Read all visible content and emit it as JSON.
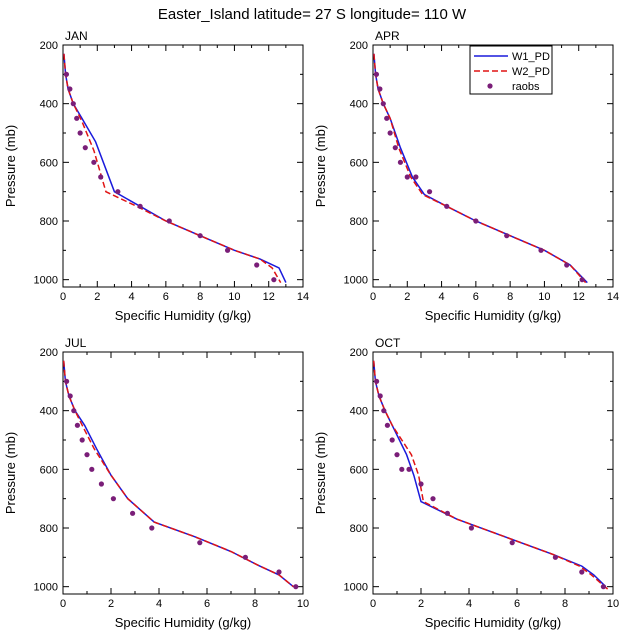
{
  "title": "Easter_Island  latitude= 27 S longitude= 110 W",
  "colors": {
    "W1_PD": "#1a1adc",
    "W2_PD": "#e01414",
    "raobs": "#7a1e78"
  },
  "legend": {
    "position": "top-right of APR panel",
    "entries": [
      {
        "key": "W1_PD",
        "label": "W1_PD",
        "style": "solid"
      },
      {
        "key": "W2_PD",
        "label": "W2_PD",
        "style": "dashed"
      },
      {
        "key": "raobs",
        "label": "raobs",
        "style": "marker"
      }
    ]
  },
  "chart_data": [
    {
      "type": "line",
      "panel": "JAN",
      "xlabel": "Specific Humidity (g/kg)",
      "ylabel": "Pressure (mb)",
      "xlim": [
        0,
        14
      ],
      "ylim": [
        1025,
        200
      ],
      "xticks": [
        "0",
        "2",
        "4",
        "6",
        "8",
        "10",
        "12",
        "14"
      ],
      "yticks": [
        "200",
        "400",
        "600",
        "800",
        "1000"
      ],
      "series": [
        {
          "name": "W1_PD",
          "x": [
            0.05,
            0.15,
            0.3,
            0.6,
            1.1,
            1.9,
            3.0,
            4.5,
            6.0,
            8.0,
            10.0,
            11.5,
            12.6,
            13.0
          ],
          "y": [
            230,
            300,
            350,
            400,
            450,
            530,
            700,
            750,
            800,
            850,
            900,
            930,
            960,
            1010
          ]
        },
        {
          "name": "W2_PD",
          "x": [
            0.05,
            0.15,
            0.3,
            0.6,
            1.1,
            1.8,
            2.5,
            4.3,
            6.0,
            8.0,
            10.0,
            11.5,
            12.2,
            12.7
          ],
          "y": [
            230,
            300,
            350,
            400,
            460,
            560,
            700,
            750,
            800,
            850,
            900,
            930,
            960,
            1010
          ]
        },
        {
          "name": "raobs",
          "x": [
            0.2,
            0.4,
            0.6,
            0.8,
            1.0,
            1.3,
            1.8,
            2.2,
            3.2,
            4.5,
            6.2,
            8.0,
            9.6,
            11.3,
            12.3
          ],
          "y": [
            300,
            350,
            400,
            450,
            500,
            550,
            600,
            650,
            700,
            750,
            800,
            850,
            900,
            950,
            1000
          ]
        }
      ]
    },
    {
      "type": "line",
      "panel": "APR",
      "xlabel": "Specific Humidity (g/kg)",
      "ylabel": "Pressure (mb)",
      "xlim": [
        0,
        14
      ],
      "ylim": [
        1025,
        200
      ],
      "xticks": [
        "0",
        "2",
        "4",
        "6",
        "8",
        "10",
        "12",
        "14"
      ],
      "yticks": [
        "200",
        "400",
        "600",
        "800",
        "1000"
      ],
      "series": [
        {
          "name": "W1_PD",
          "x": [
            0.05,
            0.15,
            0.3,
            0.6,
            1.0,
            1.6,
            2.3,
            3.0,
            4.3,
            6.0,
            8.0,
            10.0,
            11.5,
            12.5
          ],
          "y": [
            230,
            300,
            350,
            400,
            450,
            550,
            650,
            710,
            750,
            800,
            850,
            900,
            950,
            1010
          ]
        },
        {
          "name": "W2_PD",
          "x": [
            0.05,
            0.15,
            0.3,
            0.6,
            1.0,
            1.5,
            2.2,
            2.9,
            4.3,
            6.0,
            8.0,
            10.0,
            11.5,
            12.4
          ],
          "y": [
            230,
            300,
            350,
            400,
            450,
            550,
            650,
            710,
            750,
            800,
            850,
            900,
            950,
            1010
          ]
        },
        {
          "name": "raobs",
          "x": [
            0.2,
            0.4,
            0.6,
            0.8,
            1.0,
            1.3,
            1.6,
            2.0,
            2.5,
            3.3,
            4.3,
            6.0,
            7.8,
            9.8,
            11.3,
            12.2
          ],
          "y": [
            300,
            350,
            400,
            450,
            500,
            550,
            600,
            650,
            650,
            700,
            750,
            800,
            850,
            900,
            950,
            1000
          ]
        }
      ]
    },
    {
      "type": "line",
      "panel": "JUL",
      "xlabel": "Specific Humidity (g/kg)",
      "ylabel": "Pressure (mb)",
      "xlim": [
        0,
        10
      ],
      "ylim": [
        1025,
        200
      ],
      "xticks": [
        "0",
        "2",
        "4",
        "6",
        "8",
        "10"
      ],
      "yticks": [
        "200",
        "400",
        "600",
        "800",
        "1000"
      ],
      "series": [
        {
          "name": "W1_PD",
          "x": [
            0.03,
            0.1,
            0.25,
            0.5,
            0.9,
            1.4,
            2.0,
            2.7,
            3.8,
            5.5,
            7.0,
            8.2,
            9.0,
            9.6
          ],
          "y": [
            230,
            300,
            350,
            400,
            450,
            530,
            620,
            700,
            780,
            830,
            880,
            930,
            960,
            1000
          ]
        },
        {
          "name": "W2_PD",
          "x": [
            0.03,
            0.1,
            0.25,
            0.5,
            0.8,
            1.3,
            2.0,
            2.7,
            3.8,
            5.5,
            7.0,
            8.2,
            9.0,
            9.6
          ],
          "y": [
            230,
            300,
            350,
            400,
            450,
            530,
            620,
            700,
            780,
            830,
            880,
            930,
            960,
            1000
          ]
        },
        {
          "name": "raobs",
          "x": [
            0.15,
            0.3,
            0.45,
            0.6,
            0.8,
            1.0,
            1.2,
            1.6,
            2.1,
            2.9,
            3.7,
            5.7,
            7.6,
            9.0,
            9.7
          ],
          "y": [
            300,
            350,
            400,
            450,
            500,
            550,
            600,
            650,
            700,
            750,
            800,
            850,
            900,
            950,
            1000
          ]
        }
      ]
    },
    {
      "type": "line",
      "panel": "OCT",
      "xlabel": "Specific Humidity (g/kg)",
      "ylabel": "Pressure (mb)",
      "xlim": [
        0,
        10
      ],
      "ylim": [
        1025,
        200
      ],
      "xticks": [
        "0",
        "2",
        "4",
        "6",
        "8",
        "10"
      ],
      "yticks": [
        "200",
        "400",
        "600",
        "800",
        "1000"
      ],
      "series": [
        {
          "name": "W1_PD",
          "x": [
            0.03,
            0.1,
            0.25,
            0.5,
            0.8,
            1.1,
            1.4,
            1.7,
            2.0,
            3.5,
            5.5,
            7.5,
            8.7,
            9.2,
            9.7
          ],
          "y": [
            230,
            300,
            350,
            400,
            450,
            500,
            550,
            620,
            710,
            770,
            830,
            890,
            930,
            960,
            1000
          ]
        },
        {
          "name": "W2_PD",
          "x": [
            0.03,
            0.1,
            0.25,
            0.5,
            0.8,
            1.2,
            1.6,
            1.9,
            2.1,
            3.5,
            5.5,
            7.5,
            8.6,
            9.1,
            9.8
          ],
          "y": [
            230,
            300,
            350,
            400,
            450,
            500,
            550,
            620,
            710,
            770,
            830,
            890,
            930,
            960,
            1010
          ]
        },
        {
          "name": "raobs",
          "x": [
            0.15,
            0.3,
            0.45,
            0.6,
            0.8,
            1.0,
            1.2,
            1.5,
            2.0,
            2.5,
            3.1,
            4.1,
            5.8,
            7.6,
            8.7,
            9.6
          ],
          "y": [
            300,
            350,
            400,
            450,
            500,
            550,
            600,
            600,
            650,
            700,
            750,
            800,
            850,
            900,
            950,
            1000
          ]
        }
      ]
    }
  ]
}
